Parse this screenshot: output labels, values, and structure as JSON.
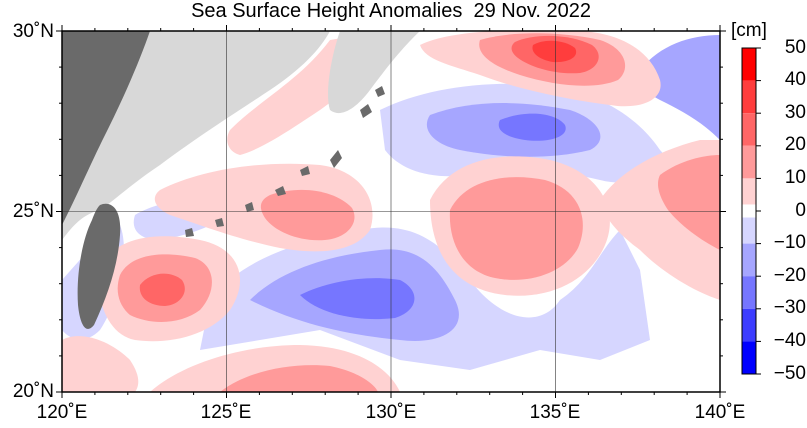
{
  "title": "Sea Surface Height Anomalies  29 Nov. 2022",
  "map": {
    "lon_range": [
      120,
      140
    ],
    "lat_range": [
      20,
      30
    ],
    "x_ticks": [
      {
        "value": 120,
        "label": "120˚E"
      },
      {
        "value": 125,
        "label": "125˚E"
      },
      {
        "value": 130,
        "label": "130˚E"
      },
      {
        "value": 135,
        "label": "135˚E"
      },
      {
        "value": 140,
        "label": "140˚E"
      }
    ],
    "y_ticks": [
      {
        "value": 30,
        "label": "30˚N"
      },
      {
        "value": 25,
        "label": "25˚N"
      },
      {
        "value": 20,
        "label": "20˚N"
      }
    ],
    "grid": true,
    "land_color": "#d8d8d8",
    "island_color": "#5a5a5a",
    "features": [
      {
        "type": "positive",
        "lon": 123.0,
        "lat": 23.0,
        "peak_cm": 30
      },
      {
        "type": "positive",
        "lon": 133.9,
        "lat": 24.8,
        "peak_cm": 25
      },
      {
        "type": "positive",
        "lon": 135.1,
        "lat": 29.3,
        "peak_cm": 40
      },
      {
        "type": "positive",
        "lon": 128.0,
        "lat": 20.3,
        "peak_cm": 25
      },
      {
        "type": "positive",
        "lon": 139.5,
        "lat": 25.5,
        "peak_cm": 25
      },
      {
        "type": "positive",
        "lon": 128.2,
        "lat": 24.8,
        "peak_cm": 20
      },
      {
        "type": "negative",
        "lon": 134.7,
        "lat": 27.3,
        "peak_cm": -25
      },
      {
        "type": "negative",
        "lon": 129.5,
        "lat": 22.0,
        "peak_cm": -20
      },
      {
        "type": "negative",
        "lon": 138.5,
        "lat": 28.5,
        "peak_cm": -15
      }
    ]
  },
  "colorbar": {
    "unit": "[cm]",
    "min": -50,
    "max": 50,
    "labels": [
      "50",
      "40",
      "30",
      "20",
      "10",
      "0",
      "−10",
      "−20",
      "−30",
      "−40",
      "−50"
    ],
    "bins": [
      {
        "range": [
          40,
          50
        ],
        "color": "#ff0000"
      },
      {
        "range": [
          30,
          40
        ],
        "color": "#ff3d3d"
      },
      {
        "range": [
          20,
          30
        ],
        "color": "#ff6666"
      },
      {
        "range": [
          10,
          20
        ],
        "color": "#ff9a9a"
      },
      {
        "range": [
          2,
          10
        ],
        "color": "#ffd2d2"
      },
      {
        "range": [
          -2,
          2
        ],
        "color": "#ffffff"
      },
      {
        "range": [
          -10,
          -2
        ],
        "color": "#d6d6ff"
      },
      {
        "range": [
          -20,
          -10
        ],
        "color": "#a6a6ff"
      },
      {
        "range": [
          -30,
          -20
        ],
        "color": "#7676ff"
      },
      {
        "range": [
          -40,
          -30
        ],
        "color": "#3d3dff"
      },
      {
        "range": [
          -50,
          -40
        ],
        "color": "#0000ff"
      }
    ]
  }
}
